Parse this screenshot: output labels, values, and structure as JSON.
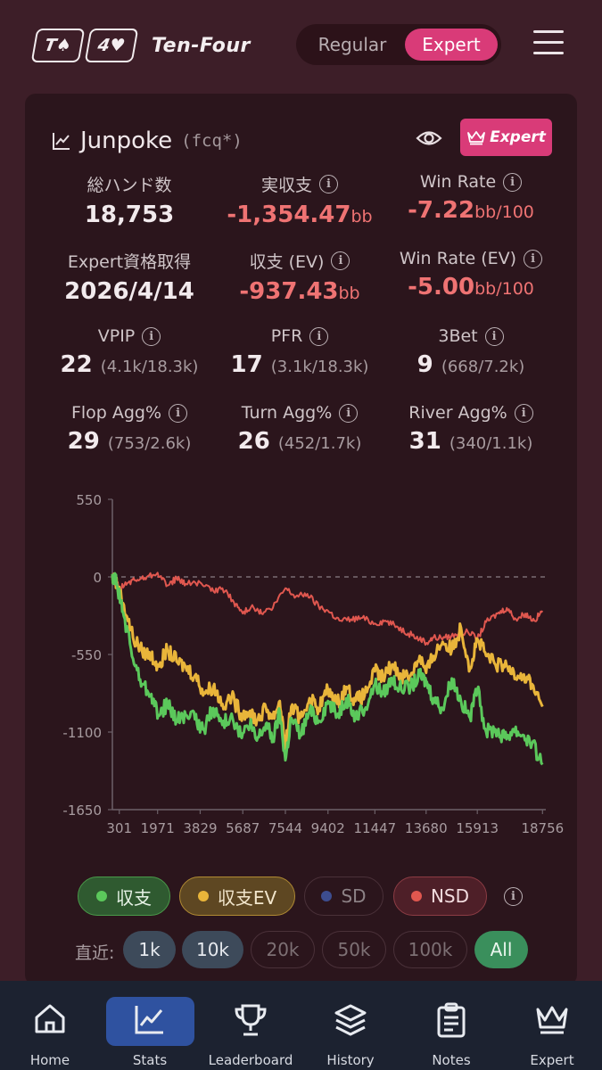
{
  "header": {
    "card1": "T♠",
    "card2": "4♥",
    "brand": "Ten-Four",
    "mode_regular": "Regular",
    "mode_expert": "Expert"
  },
  "player": {
    "name": "Junpoke",
    "tag": "(fcq*)",
    "badge": "Expert"
  },
  "stats": {
    "hands_label": "総ハンド数",
    "hands_value": "18,753",
    "net_label": "実収支",
    "net_value": "-1,354.47",
    "net_unit": "bb",
    "winrate_label": "Win Rate",
    "winrate_value": "-7.22",
    "winrate_unit": "bb/100",
    "expert_since_label": "Expert資格取得",
    "expert_since_value": "2026/4/14",
    "ev_label": "収支 (EV)",
    "ev_value": "-937.43",
    "ev_unit": "bb",
    "ev_winrate_label": "Win Rate (EV)",
    "ev_winrate_value": "-5.00",
    "ev_winrate_unit": "bb/100",
    "vpip_label": "VPIP",
    "vpip_value": "22",
    "vpip_sub": "(4.1k/18.3k)",
    "pfr_label": "PFR",
    "pfr_value": "17",
    "pfr_sub": "(3.1k/18.3k)",
    "threebet_label": "3Bet",
    "threebet_value": "9",
    "threebet_sub": "(668/7.2k)",
    "flop_label": "Flop Agg%",
    "flop_value": "29",
    "flop_sub": "(753/2.6k)",
    "turn_label": "Turn Agg%",
    "turn_value": "26",
    "turn_sub": "(452/1.7k)",
    "river_label": "River Agg%",
    "river_value": "31",
    "river_sub": "(340/1.1k)"
  },
  "chart_data": {
    "type": "line",
    "xlabel": "",
    "ylabel": "",
    "ylim": [
      -1650,
      550
    ],
    "yticks": [
      550,
      0,
      -550,
      -1100,
      -1650
    ],
    "xticks": [
      301,
      1971,
      3829,
      5687,
      7544,
      9402,
      11447,
      13680,
      15913,
      18756
    ],
    "xlim": [
      0,
      18900
    ],
    "colors": {
      "net": "#5bc85b",
      "ev": "#e9b53a",
      "nsd": "#e0574f"
    },
    "series": [
      {
        "name": "収支",
        "key": "net",
        "x": [
          0,
          200,
          500,
          900,
          1300,
          1700,
          2000,
          2400,
          2800,
          3200,
          3600,
          4000,
          4400,
          4800,
          5200,
          5600,
          6000,
          6300,
          6700,
          7000,
          7300,
          7544,
          7800,
          8200,
          8600,
          9000,
          9400,
          9800,
          10200,
          10600,
          11000,
          11447,
          11800,
          12200,
          12600,
          13000,
          13400,
          13680,
          14000,
          14400,
          14800,
          15200,
          15600,
          15913,
          16300,
          16700,
          17100,
          17500,
          17900,
          18300,
          18756
        ],
        "values": [
          20,
          -50,
          -280,
          -580,
          -760,
          -830,
          -980,
          -900,
          -1020,
          -980,
          -1010,
          -1080,
          -930,
          -1050,
          -970,
          -1130,
          -1050,
          -1160,
          -1040,
          -1150,
          -960,
          -1300,
          -1000,
          -1120,
          -950,
          -1020,
          -880,
          -980,
          -860,
          -1000,
          -940,
          -760,
          -830,
          -720,
          -800,
          -780,
          -700,
          -740,
          -860,
          -930,
          -720,
          -880,
          -1000,
          -800,
          -1100,
          -1080,
          -1140,
          -1080,
          -1120,
          -1180,
          -1330
        ]
      },
      {
        "name": "収支EV",
        "key": "ev",
        "x": [
          0,
          200,
          500,
          900,
          1300,
          1700,
          2000,
          2400,
          2800,
          3200,
          3600,
          4000,
          4400,
          4800,
          5200,
          5600,
          6000,
          6300,
          6700,
          7000,
          7300,
          7544,
          7800,
          8200,
          8600,
          9000,
          9400,
          9800,
          10200,
          10600,
          11000,
          11447,
          11800,
          12200,
          12600,
          13000,
          13400,
          13680,
          14000,
          14400,
          14800,
          15200,
          15600,
          15913,
          16300,
          16700,
          17100,
          17500,
          17900,
          18300,
          18756
        ],
        "values": [
          20,
          -60,
          -200,
          -430,
          -530,
          -560,
          -620,
          -520,
          -600,
          -640,
          -700,
          -820,
          -780,
          -900,
          -850,
          -970,
          -950,
          -1020,
          -930,
          -1000,
          -880,
          -1200,
          -920,
          -1000,
          -860,
          -930,
          -800,
          -900,
          -780,
          -880,
          -840,
          -670,
          -720,
          -620,
          -700,
          -700,
          -560,
          -680,
          -560,
          -460,
          -520,
          -360,
          -650,
          -440,
          -560,
          -620,
          -640,
          -670,
          -700,
          -760,
          -920
        ]
      },
      {
        "name": "NSD",
        "key": "nsd",
        "x": [
          0,
          300,
          700,
          1100,
          1500,
          1971,
          2400,
          2800,
          3200,
          3829,
          4300,
          4800,
          5300,
          5687,
          6100,
          6500,
          7000,
          7544,
          8000,
          8500,
          9000,
          9402,
          9900,
          10400,
          10900,
          11447,
          11900,
          12400,
          12900,
          13400,
          13680,
          14000,
          14500,
          15000,
          15500,
          15913,
          16300,
          16800,
          17200,
          17600,
          18000,
          18400,
          18756
        ],
        "values": [
          20,
          -80,
          -40,
          -20,
          0,
          30,
          -60,
          -10,
          -50,
          -40,
          -100,
          -80,
          -180,
          -260,
          -200,
          -260,
          -220,
          -80,
          -140,
          -120,
          -210,
          -240,
          -310,
          -300,
          -290,
          -330,
          -310,
          -350,
          -400,
          -440,
          -470,
          -430,
          -430,
          -410,
          -390,
          -440,
          -320,
          -260,
          -220,
          -300,
          -260,
          -310,
          -240
        ]
      }
    ]
  },
  "legend": {
    "net": "収支",
    "ev": "収支EV",
    "sd": "SD",
    "nsd": "NSD"
  },
  "range": {
    "label": "直近:",
    "opt1": "1k",
    "opt2": "10k",
    "opt3": "20k",
    "opt4": "50k",
    "opt5": "100k",
    "opt6": "All"
  },
  "nav": {
    "home": "Home",
    "stats": "Stats",
    "leaderboard": "Leaderboard",
    "history": "History",
    "notes": "Notes",
    "expert": "Expert"
  }
}
